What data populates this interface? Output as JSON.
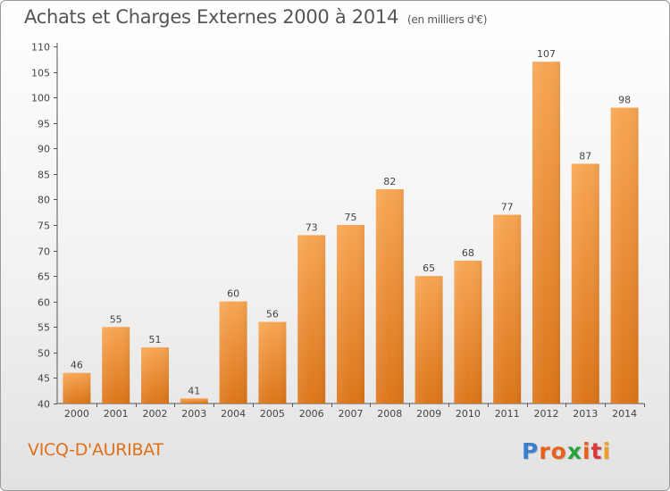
{
  "header": {
    "title": "Achats et Charges Externes 2000 à 2014",
    "subtitle": "(en milliers d'€)"
  },
  "footer": {
    "place": "VICQ-D'AURIBAT",
    "logo_text": "Proxiti",
    "logo_colors": [
      "#3a7fd0",
      "#e8601a",
      "#e8601a",
      "#2aa33a",
      "#e8601a",
      "#d83a3a",
      "#f0a020"
    ]
  },
  "colors": {
    "bar_top": "#f7a552",
    "bar_bottom": "#dc7519",
    "axis": "#555555"
  },
  "chart_data": {
    "type": "bar",
    "title": "Achats et Charges Externes 2000 à 2014",
    "subtitle": "(en milliers d'€)",
    "categories": [
      "2000",
      "2001",
      "2002",
      "2003",
      "2004",
      "2005",
      "2006",
      "2007",
      "2008",
      "2009",
      "2010",
      "2011",
      "2012",
      "2013",
      "2014"
    ],
    "values": [
      46,
      55,
      51,
      41,
      60,
      56,
      73,
      75,
      82,
      65,
      68,
      77,
      107,
      87,
      98
    ],
    "ylim": [
      40,
      110
    ],
    "yticks": [
      40,
      45,
      50,
      55,
      60,
      65,
      70,
      75,
      80,
      85,
      90,
      95,
      100,
      105,
      110
    ],
    "grid": false,
    "data_labels": true
  }
}
